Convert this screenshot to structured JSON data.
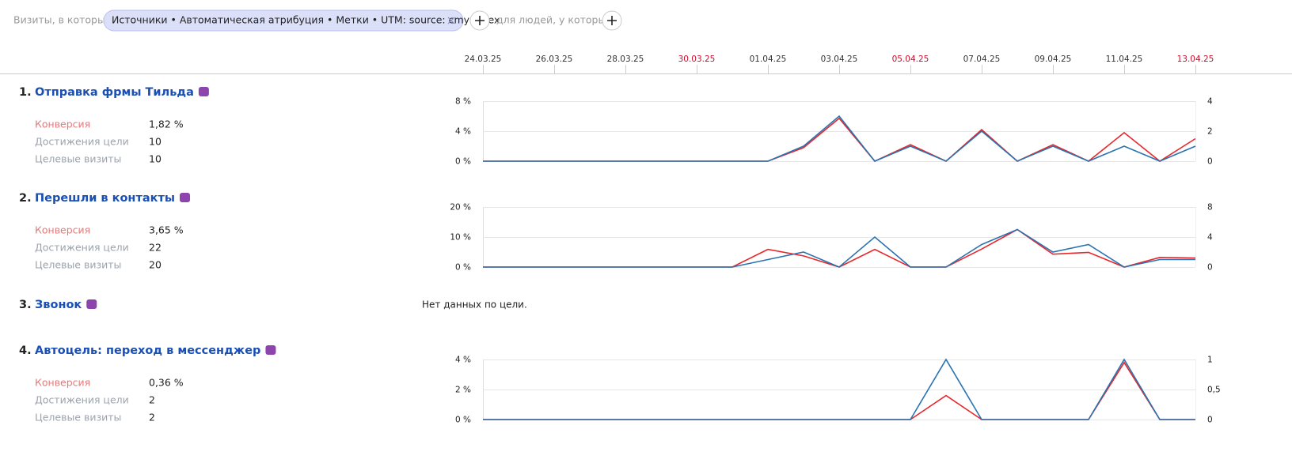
{
  "filter": {
    "prefix": "Визиты, в которых",
    "chip": "Источники • Автоматическая атрибуция • Метки • UTM: source: cmyandex",
    "middle": "для людей, у которых"
  },
  "dates": [
    {
      "label": "24.03.25",
      "color": "#333333"
    },
    {
      "label": "26.03.25",
      "color": "#333333"
    },
    {
      "label": "28.03.25",
      "color": "#333333"
    },
    {
      "label": "30.03.25",
      "color": "#c8102e"
    },
    {
      "label": "01.04.25",
      "color": "#333333"
    },
    {
      "label": "03.04.25",
      "color": "#333333"
    },
    {
      "label": "05.04.25",
      "color": "#c8102e"
    },
    {
      "label": "07.04.25",
      "color": "#333333"
    },
    {
      "label": "09.04.25",
      "color": "#333333"
    },
    {
      "label": "11.04.25",
      "color": "#333333"
    },
    {
      "label": "13.04.25",
      "color": "#c8102e"
    }
  ],
  "goals": [
    {
      "number": "1.",
      "title": "Отправка фрмы Тильда",
      "icon": "url",
      "metrics": [
        {
          "label": "Конверсия",
          "value": "1,82 %"
        },
        {
          "label": "Достижения цели",
          "value": "10"
        },
        {
          "label": "Целевые визиты",
          "value": "10"
        }
      ],
      "chart": {
        "ylim": [
          0,
          8
        ],
        "yticks": [
          {
            "value": 0,
            "label": "0 %"
          },
          {
            "value": 4,
            "label": "4 %"
          },
          {
            "value": 8,
            "label": "8 %"
          }
        ],
        "y2lim": [
          0,
          4
        ],
        "y2ticks": [
          0,
          2,
          4
        ],
        "series": [
          {
            "color": "#e8262b",
            "axis": "y",
            "values": [
              0,
              0,
              0,
              0,
              0,
              0,
              0,
              0,
              0,
              1.8,
              5.7,
              0,
              2.2,
              0,
              4.2,
              0,
              2.2,
              0,
              3.8,
              0,
              3.0
            ]
          },
          {
            "color": "#2a73b0",
            "axis": "y2",
            "values": [
              0,
              0,
              0,
              0,
              0,
              0,
              0,
              0,
              0,
              1,
              3,
              0,
              1,
              0,
              2,
              0,
              1,
              0,
              1,
              0,
              1
            ]
          }
        ]
      }
    },
    {
      "number": "2.",
      "title": "Перешли в контакты",
      "icon": "url",
      "metrics": [
        {
          "label": "Конверсия",
          "value": "3,65 %"
        },
        {
          "label": "Достижения цели",
          "value": "22"
        },
        {
          "label": "Целевые визиты",
          "value": "20"
        }
      ],
      "chart": {
        "ylim": [
          0,
          20
        ],
        "yticks": [
          {
            "value": 0,
            "label": "0 %"
          },
          {
            "value": 10,
            "label": "10 %"
          },
          {
            "value": 20,
            "label": "20 %"
          }
        ],
        "y2lim": [
          0,
          8
        ],
        "y2ticks": [
          0,
          4,
          8
        ],
        "series": [
          {
            "color": "#e8262b",
            "axis": "y",
            "values": [
              0,
              0,
              0,
              0,
              0,
              0,
              0,
              0,
              5.9,
              3.7,
              0,
              5.9,
              0,
              0,
              6,
              12.5,
              4.3,
              4.9,
              0,
              3.2,
              3.0
            ]
          },
          {
            "color": "#2a73b0",
            "axis": "y2",
            "values": [
              0,
              0,
              0,
              0,
              0,
              0,
              0,
              0,
              1,
              2,
              0,
              4,
              0,
              0,
              3,
              5,
              2,
              3,
              0,
              1,
              1
            ]
          }
        ]
      }
    },
    {
      "number": "3.",
      "title": "Звонок",
      "icon": "phone",
      "no_data": "Нет данных по цели."
    },
    {
      "number": "4.",
      "title": "Автоцель: переход в мессенджер",
      "icon": "chat",
      "metrics": [
        {
          "label": "Конверсия",
          "value": "0,36 %"
        },
        {
          "label": "Достижения цели",
          "value": "2"
        },
        {
          "label": "Целевые визиты",
          "value": "2"
        }
      ],
      "chart": {
        "ylim": [
          0,
          4
        ],
        "yticks": [
          {
            "value": 0,
            "label": "0 %"
          },
          {
            "value": 2,
            "label": "2 %"
          },
          {
            "value": 4,
            "label": "4 %"
          }
        ],
        "y2lim": [
          0,
          1
        ],
        "y2ticks": [
          0,
          {
            "value": 0.5,
            "label": "0,5"
          },
          1
        ],
        "series": [
          {
            "color": "#e8262b",
            "axis": "y",
            "values": [
              0,
              0,
              0,
              0,
              0,
              0,
              0,
              0,
              0,
              0,
              0,
              0,
              0,
              1.6,
              0,
              0,
              0,
              0,
              3.8,
              0,
              0
            ]
          },
          {
            "color": "#2a73b0",
            "axis": "y2",
            "values": [
              0,
              0,
              0,
              0,
              0,
              0,
              0,
              0,
              0,
              0,
              0,
              0,
              0,
              1,
              0,
              0,
              0,
              0,
              1,
              0,
              0
            ]
          }
        ]
      }
    }
  ]
}
